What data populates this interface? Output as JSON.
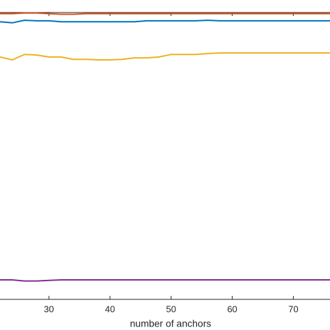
{
  "chart_data": {
    "type": "line",
    "x_label": "number of anchors",
    "x": [
      22,
      24,
      26,
      28,
      30,
      32,
      34,
      36,
      38,
      40,
      42,
      44,
      46,
      48,
      50,
      52,
      54,
      56,
      58,
      60,
      62,
      64,
      66,
      68,
      70,
      72,
      74,
      76
    ],
    "series": [
      {
        "color": "#D95319",
        "values": [
          0.996,
          0.996,
          0.998,
          0.998,
          0.996,
          0.994,
          0.994,
          0.996,
          0.996,
          0.996,
          0.996,
          0.996,
          0.996,
          0.996,
          0.996,
          0.996,
          0.996,
          0.996,
          0.996,
          0.996,
          0.996,
          0.996,
          0.996,
          0.996,
          0.996,
          0.996,
          0.996,
          0.996
        ]
      },
      {
        "color": "#0072BD",
        "values": [
          0.968,
          0.964,
          0.973,
          0.971,
          0.971,
          0.968,
          0.968,
          0.968,
          0.968,
          0.968,
          0.968,
          0.968,
          0.971,
          0.971,
          0.971,
          0.971,
          0.971,
          0.973,
          0.971,
          0.971,
          0.971,
          0.971,
          0.971,
          0.971,
          0.971,
          0.971,
          0.971,
          0.971
        ]
      },
      {
        "color": "#EDB120",
        "values": [
          0.845,
          0.835,
          0.854,
          0.852,
          0.845,
          0.845,
          0.837,
          0.837,
          0.835,
          0.835,
          0.837,
          0.842,
          0.842,
          0.845,
          0.854,
          0.854,
          0.854,
          0.857,
          0.859,
          0.859,
          0.859,
          0.859,
          0.859,
          0.859,
          0.859,
          0.859,
          0.859,
          0.859
        ]
      },
      {
        "color": "#7E2F8E",
        "values": [
          0.068,
          0.068,
          0.064,
          0.064,
          0.066,
          0.068,
          0.068,
          0.068,
          0.068,
          0.068,
          0.068,
          0.068,
          0.068,
          0.068,
          0.068,
          0.068,
          0.068,
          0.068,
          0.068,
          0.068,
          0.068,
          0.068,
          0.068,
          0.068,
          0.068,
          0.068,
          0.068,
          0.068
        ]
      }
    ],
    "xlim": [
      22,
      76
    ],
    "xticks": [
      30,
      40,
      50,
      60,
      70
    ],
    "ylim": [
      0,
      1
    ]
  }
}
